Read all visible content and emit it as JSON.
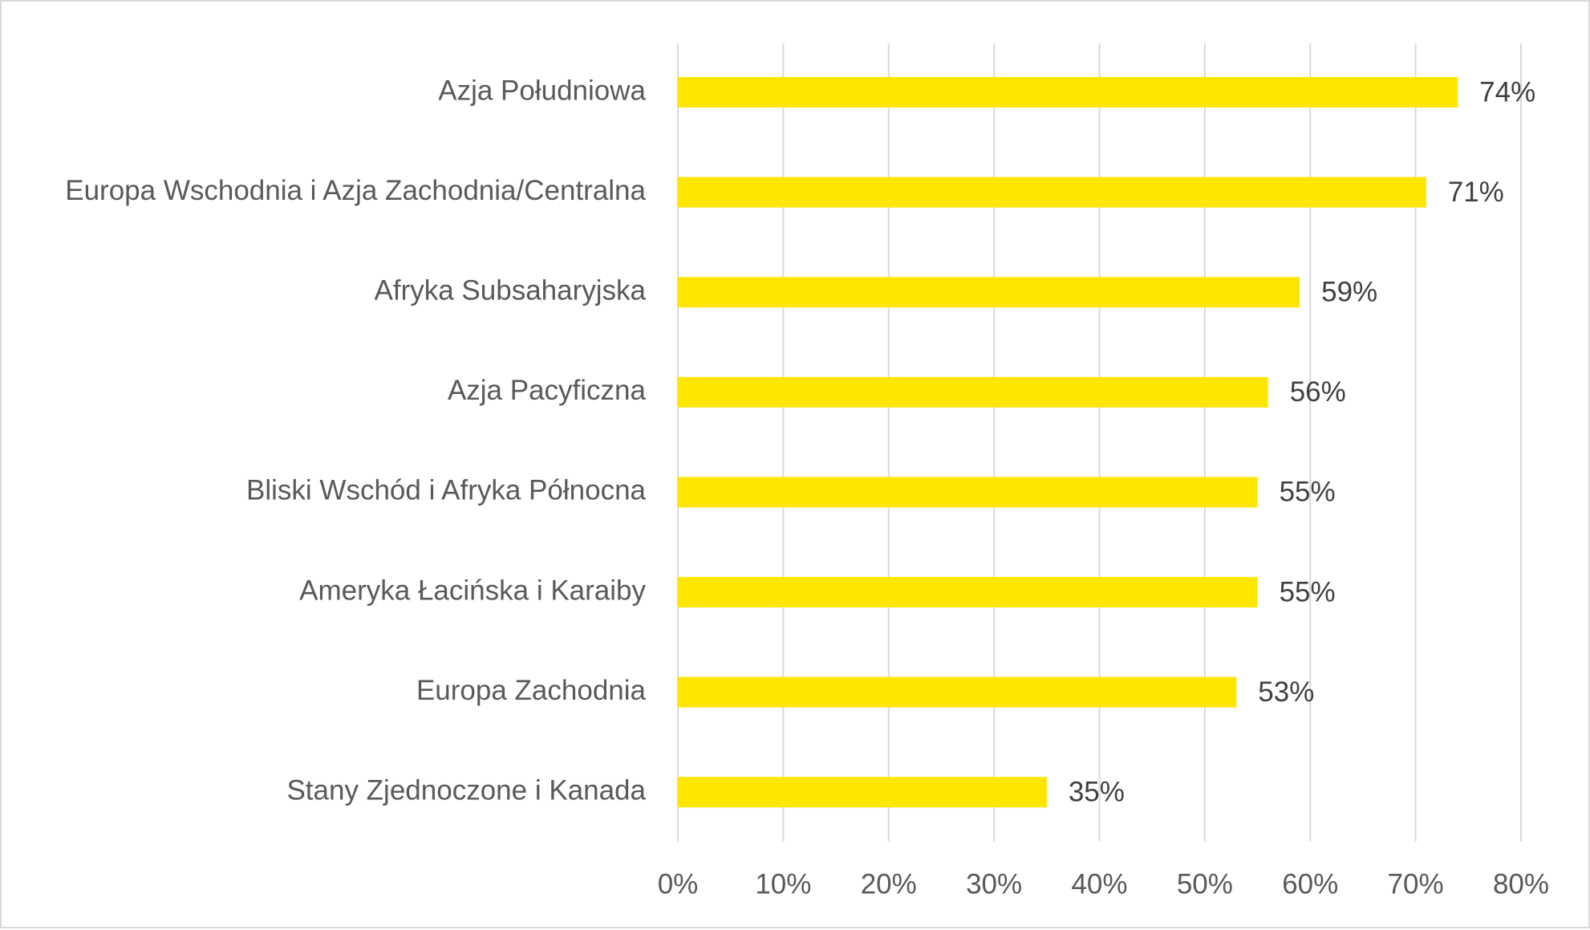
{
  "chart_data": {
    "type": "bar",
    "orientation": "horizontal",
    "categories": [
      "Azja Południowa",
      "Europa Wschodnia i Azja Zachodnia/Centralna",
      "Afryka Subsaharyjska",
      "Azja Pacyficzna",
      "Bliski Wschód i Afryka Północna",
      "Ameryka Łacińska i Karaiby",
      "Europa Zachodnia",
      "Stany Zjednoczone i Kanada"
    ],
    "values": [
      74,
      71,
      59,
      56,
      55,
      55,
      53,
      35
    ],
    "value_labels": [
      "74%",
      "71%",
      "59%",
      "56%",
      "55%",
      "55%",
      "53%",
      "35%"
    ],
    "xlim": [
      0,
      80
    ],
    "x_ticks": [
      0,
      10,
      20,
      30,
      40,
      50,
      60,
      70,
      80
    ],
    "x_tick_labels": [
      "0%",
      "10%",
      "20%",
      "30%",
      "40%",
      "50%",
      "60%",
      "70%",
      "80%"
    ],
    "grid": "vertical",
    "legend": "none",
    "title": "",
    "xlabel": "",
    "ylabel": "",
    "colors": {
      "bar": "#FFE600",
      "grid": "#d9d9d9",
      "label_text": "#595959",
      "value_text": "#404040"
    }
  }
}
